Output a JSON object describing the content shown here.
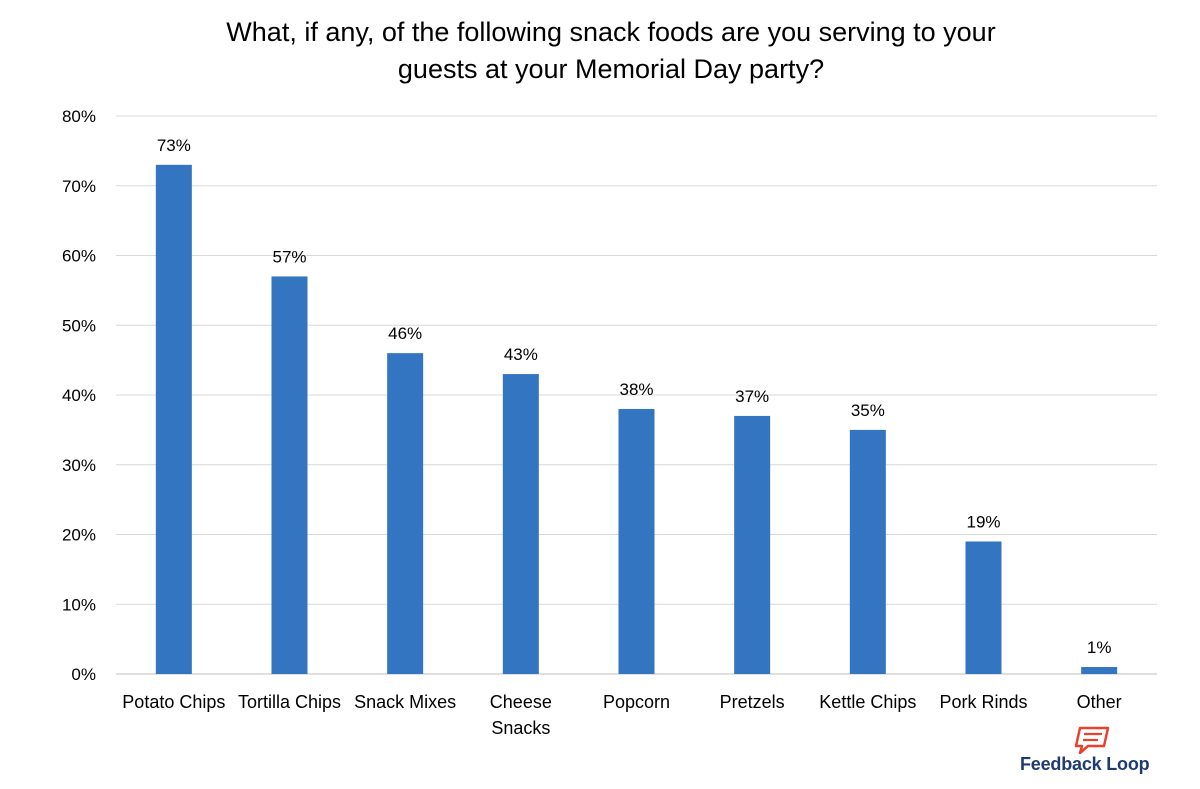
{
  "chart_data": {
    "type": "bar",
    "title_lines": [
      "What, if any, of the following snack foods are you serving to your",
      "guests at your Memorial Day party?"
    ],
    "categories": [
      [
        "Potato Chips"
      ],
      [
        "Tortilla Chips"
      ],
      [
        "Snack Mixes"
      ],
      [
        "Cheese",
        "Snacks"
      ],
      [
        "Popcorn"
      ],
      [
        "Pretzels"
      ],
      [
        "Kettle Chips"
      ],
      [
        "Pork Rinds"
      ],
      [
        "Other"
      ]
    ],
    "values": [
      73,
      57,
      46,
      43,
      38,
      37,
      35,
      19,
      1
    ],
    "data_labels": [
      "73%",
      "57%",
      "46%",
      "43%",
      "38%",
      "37%",
      "35%",
      "19%",
      "1%"
    ],
    "y_ticks": [
      "0%",
      "10%",
      "20%",
      "30%",
      "40%",
      "50%",
      "60%",
      "70%",
      "80%"
    ],
    "ylim": [
      0,
      80
    ],
    "grid": true,
    "bar_color": "#3375c1",
    "grid_color": "#d9d9d9"
  },
  "logo": {
    "text": "Feedback Loop",
    "color": "#1f3b73",
    "icon_color": "#e8412c",
    "icon": "speech-bubble-icon"
  }
}
